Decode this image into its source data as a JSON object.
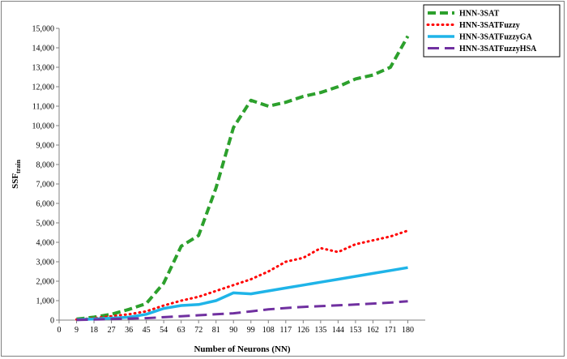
{
  "chart_data": {
    "type": "line",
    "title": "",
    "xlabel": "Number of Neurons (NN)",
    "ylabel_main": "SSF",
    "ylabel_sub": "train",
    "x_ticks": [
      0,
      9,
      18,
      27,
      36,
      45,
      54,
      63,
      72,
      81,
      90,
      99,
      108,
      117,
      126,
      135,
      144,
      153,
      162,
      171,
      180
    ],
    "x_tick_labels": [
      "0",
      "9",
      "18",
      "27",
      "36",
      "45",
      "54",
      "63",
      "72",
      "81",
      "90",
      "99",
      "108",
      "117",
      "126",
      "135",
      "144",
      "153",
      "162",
      "171",
      "180"
    ],
    "xlim": [
      0,
      189
    ],
    "y_ticks": [
      0,
      1000,
      2000,
      3000,
      4000,
      5000,
      6000,
      7000,
      8000,
      9000,
      10000,
      11000,
      12000,
      13000,
      14000,
      15000
    ],
    "y_tick_labels": [
      "0",
      "1,000",
      "2,000",
      "3,000",
      "4,000",
      "5,000",
      "6,000",
      "7,000",
      "8,000",
      "9,000",
      "10,000",
      "11,000",
      "12,000",
      "13,000",
      "14,000",
      "15,000"
    ],
    "ylim": [
      0,
      15000
    ],
    "grid": false,
    "legend_position": "top-right",
    "x": [
      9,
      18,
      27,
      36,
      45,
      54,
      63,
      72,
      81,
      90,
      99,
      108,
      117,
      126,
      135,
      144,
      153,
      162,
      171,
      180
    ],
    "series": [
      {
        "name": "HNN-3SAT",
        "color": "#2ca02c",
        "style": "dashed",
        "values": [
          50,
          150,
          300,
          550,
          850,
          1900,
          3800,
          4350,
          6800,
          9900,
          11300,
          11000,
          11200,
          11500,
          11700,
          12000,
          12400,
          12600,
          13000,
          14600
        ]
      },
      {
        "name": "HNN-3SATFuzzy",
        "color": "#ff0000",
        "style": "dotted",
        "values": [
          30,
          100,
          200,
          300,
          450,
          750,
          1000,
          1200,
          1500,
          1800,
          2100,
          2500,
          3000,
          3200,
          3700,
          3500,
          3900,
          4100,
          4300,
          4600
        ]
      },
      {
        "name": "HNN-3SATFuzzyGA",
        "color": "#1fb4e8",
        "style": "solid",
        "values": [
          20,
          60,
          100,
          150,
          300,
          600,
          750,
          800,
          1000,
          1400,
          1350,
          1500,
          1650,
          1800,
          1950,
          2100,
          2250,
          2400,
          2550,
          2700
        ]
      },
      {
        "name": "HNN-3SATFuzzyHSA",
        "color": "#7030a0",
        "style": "long-dashed",
        "values": [
          10,
          30,
          50,
          80,
          100,
          150,
          200,
          250,
          300,
          350,
          450,
          550,
          620,
          680,
          720,
          760,
          800,
          850,
          900,
          970
        ]
      }
    ]
  }
}
